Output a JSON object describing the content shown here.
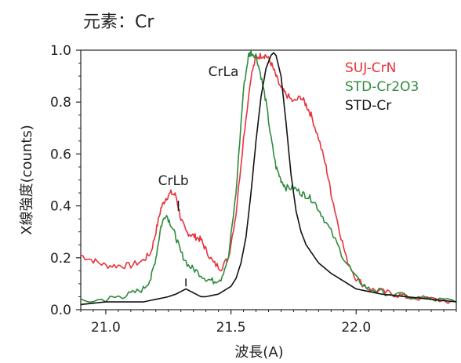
{
  "chart_data": {
    "type": "line",
    "title": "元素：Cr",
    "xlabel": "波長(A)",
    "ylabel": "X線強度(counts)",
    "xlim": [
      20.9,
      22.4
    ],
    "ylim": [
      0.0,
      1.0
    ],
    "xticks": [
      21.0,
      21.5,
      22.0
    ],
    "yticks": [
      0.0,
      0.2,
      0.4,
      0.6,
      0.8,
      1.0
    ],
    "xtick_labels": [
      "21.0",
      "21.5",
      "22.0"
    ],
    "ytick_labels": [
      "0.0",
      "0.2",
      "0.4",
      "0.6",
      "0.8",
      "1.0"
    ],
    "grid": false,
    "legend_position": "top-right",
    "annotations": [
      {
        "text": "CrLb",
        "x": 21.27,
        "y": 0.48
      },
      {
        "text": "CrLa",
        "x": 21.47,
        "y": 0.9
      }
    ],
    "series": [
      {
        "name": "SUJ-CrN",
        "color": "#e8323c",
        "x": [
          20.9,
          20.95,
          21.0,
          21.05,
          21.1,
          21.15,
          21.18,
          21.2,
          21.22,
          21.24,
          21.26,
          21.28,
          21.3,
          21.32,
          21.34,
          21.36,
          21.38,
          21.4,
          21.43,
          21.46,
          21.49,
          21.52,
          21.55,
          21.58,
          21.6,
          21.62,
          21.64,
          21.66,
          21.68,
          21.7,
          21.72,
          21.75,
          21.78,
          21.8,
          21.82,
          21.85,
          21.88,
          21.9,
          21.93,
          21.96,
          22.0,
          22.05,
          22.1,
          22.15,
          22.2,
          22.3,
          22.4
        ],
        "y": [
          0.21,
          0.19,
          0.17,
          0.17,
          0.17,
          0.19,
          0.22,
          0.3,
          0.39,
          0.43,
          0.45,
          0.44,
          0.35,
          0.3,
          0.29,
          0.28,
          0.27,
          0.23,
          0.18,
          0.16,
          0.2,
          0.37,
          0.66,
          0.9,
          0.97,
          0.98,
          0.98,
          0.95,
          0.9,
          0.85,
          0.83,
          0.8,
          0.82,
          0.79,
          0.75,
          0.66,
          0.55,
          0.45,
          0.32,
          0.2,
          0.12,
          0.08,
          0.07,
          0.06,
          0.05,
          0.04,
          0.03
        ]
      },
      {
        "name": "STD-Cr2O3",
        "color": "#2e8b3e",
        "x": [
          20.9,
          21.0,
          21.05,
          21.1,
          21.15,
          21.18,
          21.2,
          21.22,
          21.24,
          21.26,
          21.28,
          21.3,
          21.33,
          21.36,
          21.4,
          21.43,
          21.46,
          21.49,
          21.52,
          21.55,
          21.57,
          21.58,
          21.6,
          21.62,
          21.64,
          21.66,
          21.68,
          21.7,
          21.72,
          21.75,
          21.78,
          21.8,
          21.83,
          21.86,
          21.9,
          21.95,
          22.0,
          22.05,
          22.1,
          22.2,
          22.3,
          22.4
        ],
        "y": [
          0.03,
          0.04,
          0.05,
          0.06,
          0.08,
          0.12,
          0.2,
          0.32,
          0.37,
          0.33,
          0.28,
          0.22,
          0.17,
          0.15,
          0.12,
          0.11,
          0.12,
          0.2,
          0.45,
          0.85,
          0.98,
          0.99,
          0.98,
          0.9,
          0.8,
          0.66,
          0.55,
          0.5,
          0.47,
          0.47,
          0.45,
          0.44,
          0.42,
          0.37,
          0.3,
          0.2,
          0.12,
          0.08,
          0.07,
          0.05,
          0.04,
          0.03
        ]
      },
      {
        "name": "STD-Cr",
        "color": "#111111",
        "x": [
          20.9,
          21.0,
          21.1,
          21.15,
          21.2,
          21.25,
          21.28,
          21.3,
          21.32,
          21.34,
          21.36,
          21.38,
          21.4,
          21.45,
          21.5,
          21.52,
          21.54,
          21.56,
          21.58,
          21.6,
          21.62,
          21.64,
          21.66,
          21.67,
          21.68,
          21.7,
          21.72,
          21.74,
          21.76,
          21.78,
          21.8,
          21.85,
          21.9,
          21.95,
          22.0,
          22.1,
          22.2,
          22.3,
          22.4
        ],
        "y": [
          0.02,
          0.03,
          0.03,
          0.03,
          0.04,
          0.05,
          0.06,
          0.07,
          0.08,
          0.07,
          0.06,
          0.05,
          0.05,
          0.06,
          0.09,
          0.12,
          0.18,
          0.28,
          0.45,
          0.65,
          0.82,
          0.93,
          0.98,
          0.99,
          0.98,
          0.9,
          0.72,
          0.52,
          0.38,
          0.3,
          0.25,
          0.18,
          0.14,
          0.11,
          0.08,
          0.06,
          0.05,
          0.04,
          0.03
        ]
      }
    ]
  }
}
